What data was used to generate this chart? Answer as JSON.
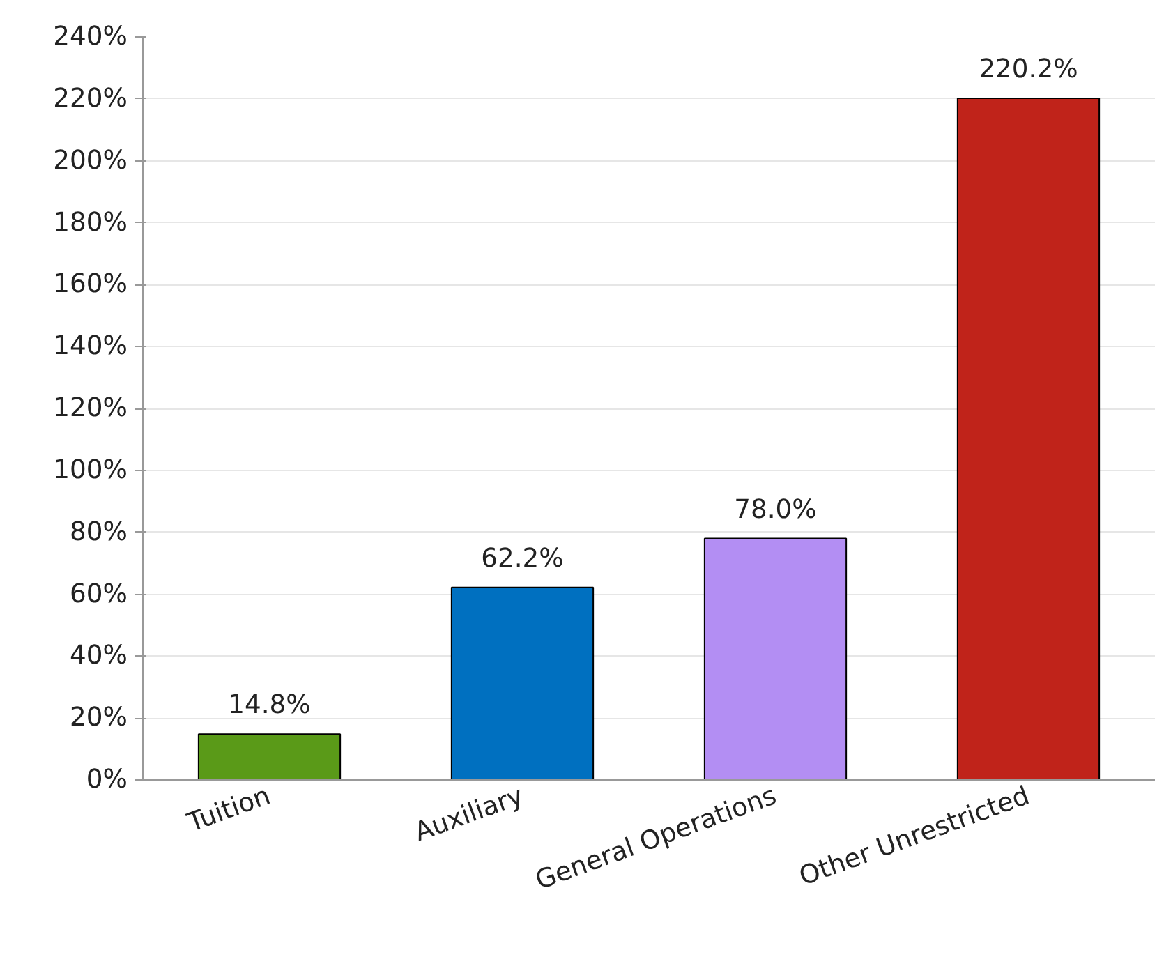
{
  "chart_data": {
    "type": "bar",
    "categories": [
      "Tuition",
      "Auxiliary",
      "General Operations",
      "Other Unrestricted"
    ],
    "values": [
      14.8,
      62.2,
      78.0,
      220.2
    ],
    "colors": [
      "#5a9a18",
      "#0070c0",
      "#b38ef3",
      "#c0231a"
    ],
    "value_labels": [
      "14.8%",
      "62.2%",
      "78.0%",
      "220.2%"
    ],
    "ylim": [
      0,
      240
    ],
    "yticks": [
      {
        "value": 0,
        "label": "0%"
      },
      {
        "value": 20,
        "label": "20%"
      },
      {
        "value": 40,
        "label": "40%"
      },
      {
        "value": 60,
        "label": "60%"
      },
      {
        "value": 80,
        "label": "80%"
      },
      {
        "value": 100,
        "label": "100%"
      },
      {
        "value": 120,
        "label": "120%"
      },
      {
        "value": 140,
        "label": "140%"
      },
      {
        "value": 160,
        "label": "160%"
      },
      {
        "value": 180,
        "label": "180%"
      },
      {
        "value": 200,
        "label": "200%"
      },
      {
        "value": 220,
        "label": "220%"
      },
      {
        "value": 240,
        "label": "240%"
      }
    ],
    "grid": "y"
  }
}
